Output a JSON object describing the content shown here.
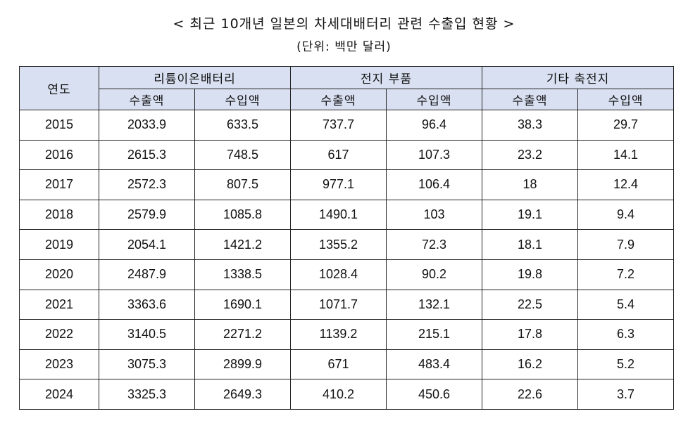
{
  "title": "< 최근 10개년 일본의 차세대배터리 관련 수출입 현황 >",
  "subtitle": "(단위: 백만 달러)",
  "table": {
    "year_header": "연도",
    "groups": [
      "리튬이온배터리",
      "전지 부품",
      "기타 축전지"
    ],
    "subheaders": [
      "수출액",
      "수입액",
      "수출액",
      "수입액",
      "수출액",
      "수입액"
    ],
    "rows": [
      [
        "2015",
        "2033.9",
        "633.5",
        "737.7",
        "96.4",
        "38.3",
        "29.7"
      ],
      [
        "2016",
        "2615.3",
        "748.5",
        "617",
        "107.3",
        "23.2",
        "14.1"
      ],
      [
        "2017",
        "2572.3",
        "807.5",
        "977.1",
        "106.4",
        "18",
        "12.4"
      ],
      [
        "2018",
        "2579.9",
        "1085.8",
        "1490.1",
        "103",
        "19.1",
        "9.4"
      ],
      [
        "2019",
        "2054.1",
        "1421.2",
        "1355.2",
        "72.3",
        "18.1",
        "7.9"
      ],
      [
        "2020",
        "2487.9",
        "1338.5",
        "1028.4",
        "90.2",
        "19.8",
        "7.2"
      ],
      [
        "2021",
        "3363.6",
        "1690.1",
        "1071.7",
        "132.1",
        "22.5",
        "5.4"
      ],
      [
        "2022",
        "3140.5",
        "2271.2",
        "1139.2",
        "215.1",
        "17.8",
        "6.3"
      ],
      [
        "2023",
        "3075.3",
        "2899.9",
        "671",
        "483.4",
        "16.2",
        "5.2"
      ],
      [
        "2024",
        "3325.3",
        "2649.3",
        "410.2",
        "450.6",
        "22.6",
        "3.7"
      ]
    ]
  },
  "colors": {
    "header_bg": "#d9e0f1",
    "border": "#222222"
  }
}
